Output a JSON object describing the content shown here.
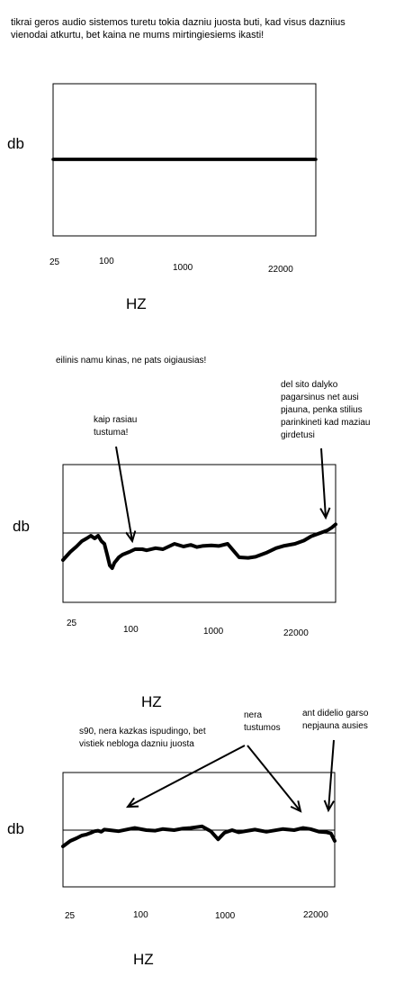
{
  "chart_data": [
    {
      "type": "line",
      "caption": "tikrai geros audio sistemos turetu tokia dazniu juosta buti, kad visus dazniius vienodai atkurtu, bet kaina ne mums mirtingiesiems ikasti!",
      "ylabel": "db",
      "xlabel": "HZ",
      "x_ticks": [
        "25",
        "100",
        "1000",
        "22000"
      ],
      "reference_level": 0,
      "series": [
        {
          "x": [
            25,
            22000
          ],
          "y": [
            0,
            0
          ]
        }
      ],
      "annotations": []
    },
    {
      "type": "line",
      "caption": "eilinis namu kinas, ne pats oigiausias!",
      "ylabel": "db",
      "xlabel": "HZ",
      "x_ticks": [
        "25",
        "100",
        "1000",
        "22000"
      ],
      "reference_level": 0,
      "series": [
        {
          "x": [
            25,
            30,
            35,
            40,
            45,
            50,
            55,
            60,
            65,
            70,
            75,
            80,
            85,
            90,
            95,
            100,
            110,
            130,
            150,
            180,
            200,
            250,
            300,
            400,
            500,
            600,
            700,
            800,
            1000,
            1200,
            1500,
            2000,
            2500,
            3000,
            4000,
            5000,
            6000,
            8000,
            10000,
            12000,
            15000,
            18000,
            20000,
            22000
          ],
          "y": [
            -5,
            -3.5,
            -2.5,
            -1.5,
            -1,
            -0.5,
            -1,
            -0.5,
            -1.5,
            -2,
            -4,
            -6,
            -6.5,
            -5.5,
            -5,
            -4.5,
            -4,
            -3.5,
            -3,
            -3,
            -3.2,
            -2.8,
            -3,
            -2,
            -2.5,
            -2.2,
            -2.6,
            -2.4,
            -2.3,
            -2.4,
            -2,
            -4.5,
            -4.6,
            -4.4,
            -3.6,
            -2.8,
            -2.4,
            -2,
            -1.4,
            -0.6,
            0,
            0.5,
            1,
            1.6
          ]
        }
      ],
      "annotations": [
        {
          "text": "kaip rasiau\ntustuma!"
        },
        {
          "text": "del sito dalyko\npagarsinus net ausi\npjauna, penka stilius\nparinkineti kad maziau\ngirdetusi"
        }
      ]
    },
    {
      "type": "line",
      "caption": "s90, nera kazkas ispudingo, bet\nvistiek nebloga dazniu juosta",
      "ylabel": "db",
      "xlabel": "HZ",
      "x_ticks": [
        "25",
        "100",
        "1000",
        "22000"
      ],
      "reference_level": 0,
      "series": [
        {
          "x": [
            25,
            30,
            35,
            40,
            45,
            50,
            55,
            60,
            65,
            70,
            80,
            100,
            130,
            150,
            200,
            250,
            300,
            400,
            500,
            600,
            800,
            1000,
            1200,
            1400,
            1500,
            1700,
            2000,
            3000,
            4000,
            6000,
            8000,
            10000,
            12000,
            15000,
            18000,
            20000,
            22000
          ],
          "y": [
            -3,
            -2,
            -1.5,
            -1,
            -0.8,
            -0.5,
            -0.2,
            -0.1,
            -0.3,
            0.1,
            0,
            -0.2,
            0.2,
            0.4,
            0,
            -0.1,
            0.2,
            0,
            0.3,
            0.4,
            0.7,
            -0.2,
            -1.7,
            -0.5,
            -0.3,
            0,
            -0.4,
            0.1,
            -0.3,
            0.2,
            0,
            0.4,
            0.2,
            -0.3,
            -0.4,
            -0.6,
            -2
          ]
        }
      ],
      "annotations": [
        {
          "text": "nera\ntustumos"
        },
        {
          "text": "ant didelio garso\nnepjauna ausies"
        }
      ]
    }
  ]
}
